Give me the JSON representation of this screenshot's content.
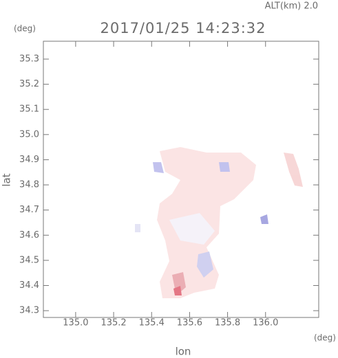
{
  "chart_data": {
    "type": "field",
    "altitude_label": "ALT(km)  2.0",
    "title": "2017/01/25 14:23:32",
    "y_unit": "(deg)",
    "x_unit": "(deg)",
    "ylabel": "lat",
    "xlabel": "lon",
    "xlim": [
      134.83,
      136.28
    ],
    "ylim": [
      34.273,
      35.371
    ],
    "xticks": [
      {
        "value": 135,
        "label": "135.0"
      },
      135.2,
      135.4,
      135.6,
      135.8,
      {
        "value": 136,
        "label": "136.0"
      }
    ],
    "yticks": [
      34.3,
      34.4,
      34.5,
      34.6,
      34.7,
      34.8,
      34.9,
      {
        "value": 35,
        "label": "35.0"
      },
      35.1,
      35.2,
      35.3
    ]
  }
}
